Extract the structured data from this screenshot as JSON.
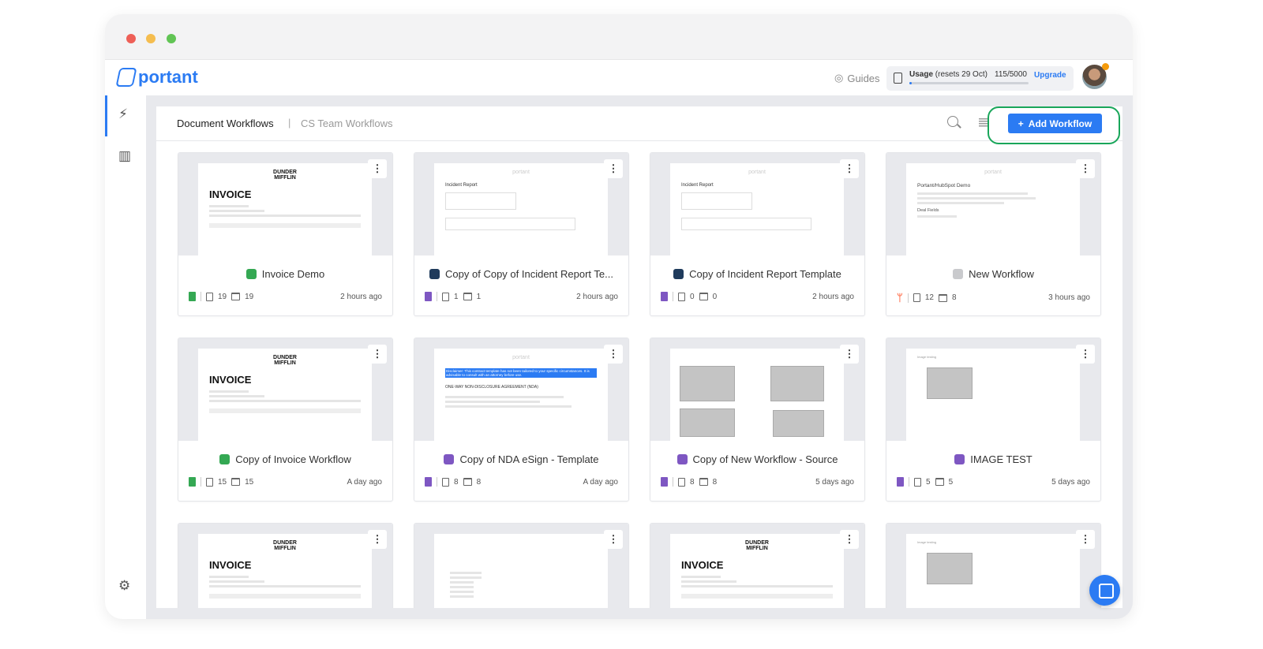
{
  "app": {
    "logo": "portant"
  },
  "header": {
    "guides": "Guides",
    "usage_label": "Usage",
    "usage_reset": "(resets 29 Oct)",
    "usage_count": "115/5000",
    "usage_fraction": 0.023,
    "upgrade": "Upgrade"
  },
  "toolbar": {
    "tab_active": "Document Workflows",
    "separator": "|",
    "tab_other": "CS Team Workflows",
    "add_label": "Add Workflow"
  },
  "colors": {
    "accent": "#2b7bf3",
    "highlight_ring": "#19a65a",
    "sheets": "#34a853",
    "forms": "#7e57c2",
    "hubspot": "#ff7a59",
    "navy": "#1f3b5c"
  },
  "thumb_text": {
    "dunder": "DUNDER MIFFLIN",
    "invoice": "INVOICE",
    "portant": "portant",
    "incident": "Incident Report",
    "hubspot_title": "Portant/HubSpot Demo",
    "deal_fields": "Deal Fields",
    "nda_disclaimer": "Disclaimer: This contract template has not been tailored to your specific circumstances. It is advisable to consult with an attorney before use.",
    "nda_title": "ONE-WAY NON-DISCLOSURE AGREEMENT (NDA)",
    "image_testing": "Image testing"
  },
  "cards": [
    {
      "title": "Invoice Demo",
      "title_icon": "sheets",
      "source": "sheets",
      "docs": "19",
      "events": "19",
      "time": "2 hours ago",
      "thumb": "invoice"
    },
    {
      "title": "Copy of Copy of Incident Report Te...",
      "title_icon": "navy",
      "source": "forms",
      "docs": "1",
      "events": "1",
      "time": "2 hours ago",
      "thumb": "incident"
    },
    {
      "title": "Copy of Incident Report Template",
      "title_icon": "navy",
      "source": "forms",
      "docs": "0",
      "events": "0",
      "time": "2 hours ago",
      "thumb": "incident"
    },
    {
      "title": "New Workflow",
      "title_icon": "gray",
      "source": "hubspot",
      "docs": "12",
      "events": "8",
      "time": "3 hours ago",
      "thumb": "hubspot"
    },
    {
      "title": "Copy of Invoice Workflow",
      "title_icon": "sheets",
      "source": "sheets",
      "docs": "15",
      "events": "15",
      "time": "A day ago",
      "thumb": "invoice"
    },
    {
      "title": "Copy of NDA eSign - Template",
      "title_icon": "forms",
      "source": "forms",
      "docs": "8",
      "events": "8",
      "time": "A day ago",
      "thumb": "nda"
    },
    {
      "title": "Copy of New Workflow - Source",
      "title_icon": "forms",
      "source": "forms",
      "docs": "8",
      "events": "8",
      "time": "5 days ago",
      "thumb": "images4"
    },
    {
      "title": "IMAGE TEST",
      "title_icon": "forms",
      "source": "forms",
      "docs": "5",
      "events": "5",
      "time": "5 days ago",
      "thumb": "image"
    },
    {
      "thumb": "invoice"
    },
    {
      "thumb": "fields"
    },
    {
      "thumb": "invoice"
    },
    {
      "thumb": "image"
    }
  ]
}
